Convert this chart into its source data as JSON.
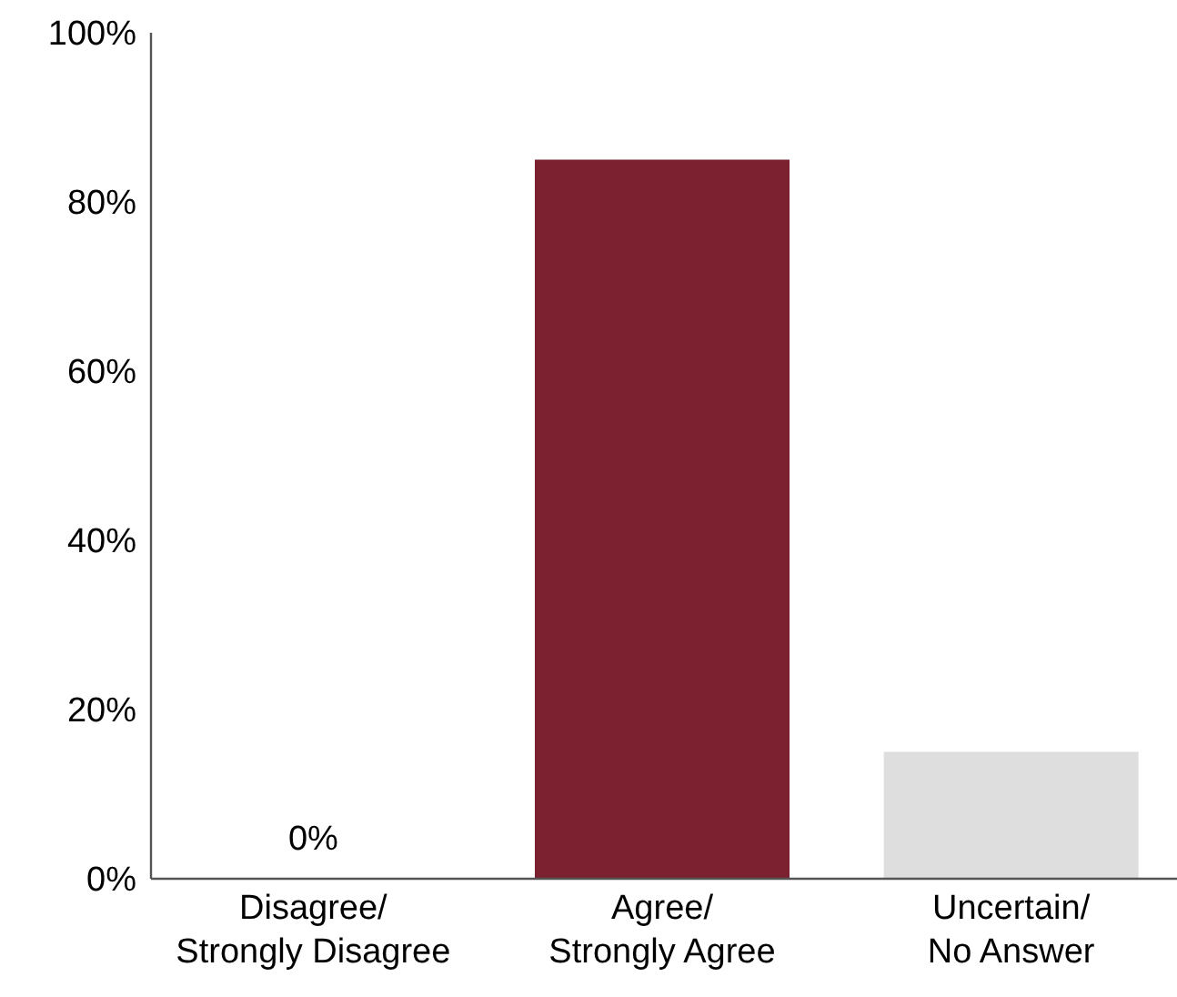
{
  "chart_data": {
    "type": "bar",
    "categories": [
      "Disagree/\nStrongly Disagree",
      "Agree/\nStrongly Agree",
      "Uncertain/\nNo Answer"
    ],
    "values": [
      0,
      85,
      15
    ],
    "colors": [
      "#7b2130",
      "#7b2130",
      "#dedede"
    ],
    "value_labels": [
      "0%",
      null,
      null
    ],
    "ylim": [
      0,
      100
    ],
    "yticks": [
      {
        "value": 0,
        "label": "0%"
      },
      {
        "value": 20,
        "label": "20%"
      },
      {
        "value": 40,
        "label": "40%"
      },
      {
        "value": 60,
        "label": "60%"
      },
      {
        "value": 80,
        "label": "80%"
      },
      {
        "value": 100,
        "label": "100%"
      }
    ],
    "grid": false
  }
}
